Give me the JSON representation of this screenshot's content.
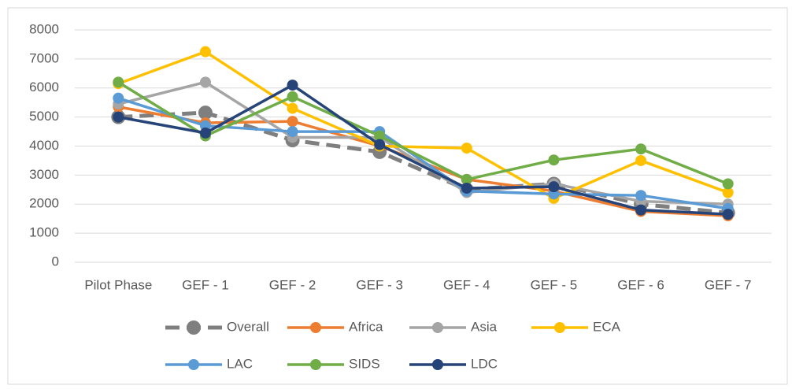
{
  "chart_data": {
    "type": "line",
    "categories": [
      "Pilot Phase",
      "GEF - 1",
      "GEF - 2",
      "GEF - 3",
      "GEF - 4",
      "GEF - 5",
      "GEF - 6",
      "GEF - 7"
    ],
    "series": [
      {
        "name": "Overall",
        "color": "#7f7f7f",
        "line_style": "dashed",
        "values": [
          5000,
          5150,
          4200,
          3800,
          2500,
          2700,
          2000,
          1700
        ]
      },
      {
        "name": "Africa",
        "color": "#ed7d31",
        "values": [
          5350,
          4800,
          4850,
          4000,
          2850,
          2450,
          1750,
          1600
        ]
      },
      {
        "name": "Asia",
        "color": "#a5a5a5",
        "values": [
          5450,
          6200,
          4300,
          4300,
          2400,
          2700,
          2100,
          2000
        ]
      },
      {
        "name": "ECA",
        "color": "#ffc000",
        "values": [
          6150,
          7250,
          5300,
          4000,
          3930,
          2200,
          3500,
          2400
        ]
      },
      {
        "name": "LAC",
        "color": "#5b9bd5",
        "values": [
          5650,
          4700,
          4500,
          4500,
          2450,
          2350,
          2300,
          1850
        ]
      },
      {
        "name": "SIDS",
        "color": "#70ad47",
        "values": [
          6200,
          4350,
          5700,
          4350,
          2850,
          3520,
          3900,
          2700
        ]
      },
      {
        "name": "LDC",
        "color": "#264478",
        "values": [
          5000,
          4450,
          6100,
          4050,
          2550,
          2600,
          1800,
          1650
        ]
      }
    ],
    "ylim": [
      0,
      8000
    ],
    "yticks": [
      0,
      1000,
      2000,
      3000,
      4000,
      5000,
      6000,
      7000,
      8000
    ],
    "grid": true,
    "legend": "bottom"
  }
}
